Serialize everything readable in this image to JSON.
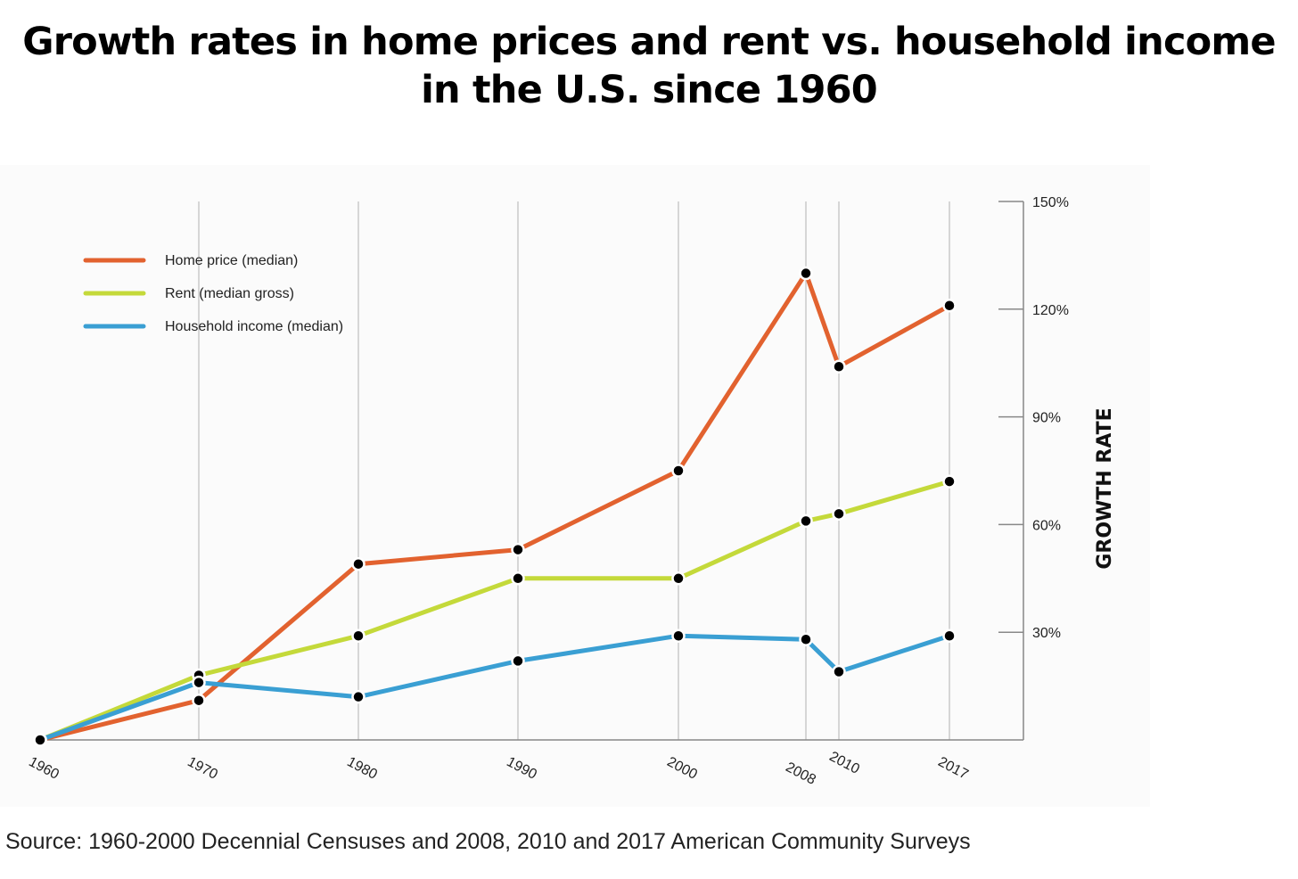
{
  "title": "Growth rates in home prices and rent vs. household income in the U.S. since 1960",
  "source": "Source: 1960-2000 Decennial Censuses and 2008, 2010 and 2017 American Community Surveys",
  "chart_data": {
    "type": "line",
    "title": "Growth rates in home prices and rent vs. household income in the U.S. since 1960",
    "xlabel": "",
    "ylabel": "GROWTH RATE",
    "x": [
      "1960",
      "1970",
      "1980",
      "1990",
      "2000",
      "2008",
      "2010",
      "2017"
    ],
    "ylim": [
      0,
      150
    ],
    "yticks": [
      30,
      60,
      90,
      120,
      150
    ],
    "ytick_labels": [
      "30%",
      "60%",
      "90%",
      "120%",
      "150%"
    ],
    "y_axis_side": "right",
    "grid": "vertical",
    "legend_position": "top-left",
    "series": [
      {
        "name": "Home price (median)",
        "color": "#e2622f",
        "values": [
          0,
          11,
          49,
          53,
          75,
          130,
          104,
          121
        ]
      },
      {
        "name": "Rent (median gross)",
        "color": "#c4d93a",
        "values": [
          0,
          18,
          29,
          45,
          45,
          61,
          63,
          72
        ]
      },
      {
        "name": "Household income (median)",
        "color": "#3a9fd3",
        "values": [
          0,
          16,
          12,
          22,
          29,
          28,
          19,
          29
        ]
      }
    ]
  }
}
